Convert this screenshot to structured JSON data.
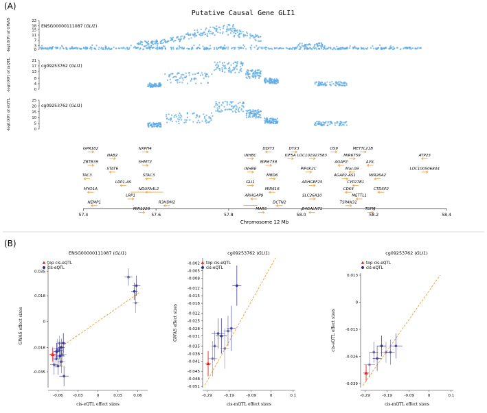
{
  "colors": {
    "point": "#5aa9e6",
    "gene_arrow": "#f0a44a",
    "top_eqtl": "#e8231e",
    "cis_eqtl": "#2b2a8c",
    "fit_line": "#f4a23a",
    "axis": "#333333"
  },
  "panel_a": {
    "label": "(A)",
    "title": "Putative Causal Gene GLI1",
    "xlabel": "Chromosome 12 Mb",
    "x_ticks": [
      "57.4",
      "57.6",
      "57.8",
      "58.0",
      "58.2",
      "58.4"
    ],
    "tracks": [
      {
        "prefix": "ENSG00000111087 (",
        "gene": "GLI1",
        "suffix": ")",
        "ylabel": "-log10(P) of GWAS",
        "ticks": [
          "0",
          "3",
          "7",
          "11",
          "15",
          "18",
          "22"
        ],
        "y_max": 22
      },
      {
        "prefix": "cg09253762 (",
        "gene": "GLI1",
        "suffix": ")",
        "ylabel": "-log10(P) of mQTL",
        "ticks": [
          "0",
          "4",
          "8",
          "13",
          "17",
          "21"
        ],
        "y_max": 21
      },
      {
        "prefix": "cg09253762 (",
        "gene": "GLI1",
        "suffix": ")",
        "ylabel": "-log10(P) of eQTL",
        "ticks": [
          "0",
          "5",
          "10",
          "15",
          "20",
          "25"
        ],
        "y_max": 25
      }
    ],
    "genes": [
      {
        "name": "GPR182",
        "pos": 57.42,
        "row": 0,
        "dir": 1
      },
      {
        "name": "NAB2",
        "pos": 57.48,
        "row": 1,
        "dir": 1
      },
      {
        "name": "NXPH4",
        "pos": 57.57,
        "row": 0,
        "dir": 1
      },
      {
        "name": "ZBTB39",
        "pos": 57.42,
        "row": 2,
        "dir": 1
      },
      {
        "name": "STAT6",
        "pos": 57.48,
        "row": 3,
        "dir": -1
      },
      {
        "name": "SHMT2",
        "pos": 57.57,
        "row": 2,
        "dir": 1
      },
      {
        "name": "TAC3",
        "pos": 57.41,
        "row": 4,
        "dir": -1
      },
      {
        "name": "LRP1-AS",
        "pos": 57.51,
        "row": 5,
        "dir": -1
      },
      {
        "name": "STAC3",
        "pos": 57.58,
        "row": 4,
        "dir": -1
      },
      {
        "name": "MYO1A",
        "pos": 57.42,
        "row": 6,
        "dir": -1
      },
      {
        "name": "NDUFA4L2",
        "pos": 57.58,
        "row": 6,
        "dir": -1
      },
      {
        "name": "LRP1",
        "pos": 57.53,
        "row": 7,
        "dir": 1
      },
      {
        "name": "NEMP1",
        "pos": 57.43,
        "row": 8,
        "dir": -1
      },
      {
        "name": "R3HDM2",
        "pos": 57.63,
        "row": 8,
        "dir": -1
      },
      {
        "name": "MIR1228",
        "pos": 57.56,
        "row": 9,
        "dir": 1
      },
      {
        "name": "DDIT3",
        "pos": 57.91,
        "row": 0,
        "dir": -1
      },
      {
        "name": "DTX3",
        "pos": 57.98,
        "row": 0,
        "dir": 1
      },
      {
        "name": "OS9",
        "pos": 58.09,
        "row": 0,
        "dir": 1
      },
      {
        "name": "METTL21B",
        "pos": 58.17,
        "row": 0,
        "dir": 1
      },
      {
        "name": "ATP23",
        "pos": 58.34,
        "row": 1,
        "dir": -1
      },
      {
        "name": "INHBC",
        "pos": 57.86,
        "row": 1,
        "dir": 1
      },
      {
        "name": "KIF5A",
        "pos": 57.97,
        "row": 1,
        "dir": 1
      },
      {
        "name": "LOC101927583",
        "pos": 58.03,
        "row": 1,
        "dir": 1
      },
      {
        "name": "MIR6759",
        "pos": 58.14,
        "row": 1,
        "dir": 1
      },
      {
        "name": "MIR6758",
        "pos": 57.91,
        "row": 2,
        "dir": 1
      },
      {
        "name": "AGAP2",
        "pos": 58.11,
        "row": 2,
        "dir": -1
      },
      {
        "name": "AVIL",
        "pos": 58.19,
        "row": 2,
        "dir": -1
      },
      {
        "name": "INHBE",
        "pos": 57.86,
        "row": 3,
        "dir": 1
      },
      {
        "name": "PIP4K2C",
        "pos": 58.02,
        "row": 3,
        "dir": 1
      },
      {
        "name": "Mar-09",
        "pos": 58.14,
        "row": 3,
        "dir": -1
      },
      {
        "name": "LOC100506844",
        "pos": 58.34,
        "row": 3,
        "dir": 1
      },
      {
        "name": "MBD6",
        "pos": 57.92,
        "row": 4,
        "dir": 1
      },
      {
        "name": "AGAP2-AS1",
        "pos": 58.12,
        "row": 4,
        "dir": 1
      },
      {
        "name": "MIR26A2",
        "pos": 58.21,
        "row": 4,
        "dir": -1
      },
      {
        "name": "GLI1",
        "pos": 57.86,
        "row": 5,
        "dir": 1
      },
      {
        "name": "ARHGEF25",
        "pos": 58.03,
        "row": 5,
        "dir": 1
      },
      {
        "name": "CYP27B1",
        "pos": 58.15,
        "row": 5,
        "dir": -1
      },
      {
        "name": "MIR616",
        "pos": 57.92,
        "row": 6,
        "dir": -1
      },
      {
        "name": "CDK4",
        "pos": 58.13,
        "row": 6,
        "dir": -1
      },
      {
        "name": "CTDSP2",
        "pos": 58.22,
        "row": 6,
        "dir": -1
      },
      {
        "name": "ARHGAP9",
        "pos": 57.87,
        "row": 7,
        "dir": -1
      },
      {
        "name": "SLC26A10",
        "pos": 58.03,
        "row": 7,
        "dir": 1
      },
      {
        "name": "METTL1",
        "pos": 58.16,
        "row": 7,
        "dir": -1
      },
      {
        "name": "DCTN2",
        "pos": 57.94,
        "row": 8,
        "dir": -1
      },
      {
        "name": "TSPAN31",
        "pos": 58.13,
        "row": 8,
        "dir": 1
      },
      {
        "name": "MARS",
        "pos": 57.89,
        "row": 9,
        "dir": 1
      },
      {
        "name": "B4GALNT1",
        "pos": 58.03,
        "row": 9,
        "dir": -1
      },
      {
        "name": "TSFM",
        "pos": 58.19,
        "row": 9,
        "dir": 1
      }
    ]
  },
  "panel_b": {
    "label": "(B)",
    "legend_top": "top cis-eQTL",
    "legend_cis": "cis-eQTL"
  },
  "chart_data": [
    {
      "type": "scatter",
      "title_prefix": "ENSG00000111087 (",
      "title_gene": "GLI1",
      "title_suffix": ")",
      "xlabel": "cis-eQTL effect sizes",
      "ylabel": "GWAS effect sizes",
      "xlim": [
        -0.075,
        0.075
      ],
      "ylim": [
        -0.046,
        0.04
      ],
      "x_ticks": [
        -0.06,
        -0.03,
        0,
        0.03,
        0.06
      ],
      "x_tick_labels": [
        "-0.06",
        "-0.03",
        "0",
        "0.03",
        "0.06"
      ],
      "y_ticks": [
        -0.035,
        -0.018,
        0,
        0.018,
        0.035
      ],
      "y_tick_labels": [
        "-0.035",
        "-0.018",
        "0",
        "0.018",
        "0.035"
      ],
      "legend": true,
      "fit": [
        [
          -0.072,
          -0.023
        ],
        [
          0.062,
          0.02
        ]
      ],
      "top": [
        {
          "x": -0.068,
          "y": -0.023,
          "xe": 0.005,
          "ye": 0.005
        }
      ],
      "points": [
        {
          "x": -0.061,
          "y": -0.019,
          "xe": 0.006,
          "ye": 0.007
        },
        {
          "x": -0.058,
          "y": -0.02,
          "xe": 0.006,
          "ye": 0.006
        },
        {
          "x": -0.055,
          "y": -0.018,
          "xe": 0.005,
          "ye": 0.006
        },
        {
          "x": -0.057,
          "y": -0.024,
          "xe": 0.007,
          "ye": 0.007
        },
        {
          "x": -0.063,
          "y": -0.026,
          "xe": 0.006,
          "ye": 0.006
        },
        {
          "x": -0.055,
          "y": -0.028,
          "xe": 0.005,
          "ye": 0.008
        },
        {
          "x": -0.06,
          "y": -0.031,
          "xe": 0.007,
          "ye": 0.006
        },
        {
          "x": -0.052,
          "y": -0.015,
          "xe": 0.004,
          "ye": 0.007
        },
        {
          "x": -0.058,
          "y": -0.015,
          "xe": 0.005,
          "ye": 0.005
        },
        {
          "x": -0.066,
          "y": -0.03,
          "xe": 0.006,
          "ye": 0.007
        },
        {
          "x": -0.051,
          "y": -0.038,
          "xe": 0.007,
          "ye": 0.007
        },
        {
          "x": -0.062,
          "y": -0.021,
          "xe": 0.005,
          "ye": 0.006
        },
        {
          "x": -0.053,
          "y": -0.023,
          "xe": 0.006,
          "ye": 0.005
        },
        {
          "x": 0.046,
          "y": 0.031,
          "xe": 0.006,
          "ye": 0.006
        },
        {
          "x": 0.058,
          "y": 0.025,
          "xe": 0.006,
          "ye": 0.007
        },
        {
          "x": 0.055,
          "y": 0.021,
          "xe": 0.005,
          "ye": 0.006
        },
        {
          "x": 0.057,
          "y": 0.013,
          "xe": 0.005,
          "ye": 0.007
        }
      ]
    },
    {
      "type": "scatter",
      "title_prefix": "cg09253762 (",
      "title_gene": "GLI1",
      "title_suffix": ")",
      "xlabel": "cis-mQTL effect sizes",
      "ylabel": "GWAS effect sizes",
      "xlim": [
        -0.31,
        0.11
      ],
      "ylim": [
        -0.0515,
        0.0
      ],
      "x_ticks": [
        -0.29,
        -0.19,
        -0.09,
        0,
        0.1
      ],
      "x_tick_labels": [
        "-0.29",
        "-0.19",
        "-0.09",
        "0",
        "0.1"
      ],
      "y_ticks": [
        -0.002,
        -0.005,
        -0.008,
        -0.012,
        -0.015,
        -0.018,
        -0.022,
        -0.025,
        -0.028,
        -0.031,
        -0.035,
        -0.038,
        -0.041,
        -0.045,
        -0.048,
        -0.051
      ],
      "y_tick_labels": [
        "-0.002",
        "-0.005",
        "-0.008",
        "-0.012",
        "-0.015",
        "-0.018",
        "-0.022",
        "-0.025",
        "-0.028",
        "-0.031",
        "-0.035",
        "-0.038",
        "-0.041",
        "-0.045",
        "-0.048",
        "-0.051"
      ],
      "legend": true,
      "fit": [
        [
          -0.3,
          -0.0505
        ],
        [
          0.02,
          0.0
        ]
      ],
      "top": [
        {
          "x": -0.285,
          "y": -0.042,
          "xe": 0.012,
          "ye": 0.005
        }
      ],
      "points": [
        {
          "x": -0.265,
          "y": -0.04,
          "xe": 0.02,
          "ye": 0.007
        },
        {
          "x": -0.255,
          "y": -0.035,
          "xe": 0.015,
          "ye": 0.006
        },
        {
          "x": -0.24,
          "y": -0.03,
          "xe": 0.03,
          "ye": 0.006
        },
        {
          "x": -0.225,
          "y": -0.031,
          "xe": 0.025,
          "ye": 0.007
        },
        {
          "x": -0.21,
          "y": -0.036,
          "xe": 0.02,
          "ye": 0.008
        },
        {
          "x": -0.195,
          "y": -0.029,
          "xe": 0.02,
          "ye": 0.006
        },
        {
          "x": -0.18,
          "y": -0.028,
          "xe": 0.02,
          "ye": 0.009
        },
        {
          "x": -0.155,
          "y": -0.011,
          "xe": 0.02,
          "ye": 0.008
        }
      ]
    },
    {
      "type": "scatter",
      "title_prefix": "cg09253762 (",
      "title_gene": "GLI1",
      "title_suffix": ")",
      "xlabel": "cis-mQTL effect sizes",
      "ylabel": "cis-eQTL effect sizes",
      "xlim": [
        -0.31,
        0.11
      ],
      "ylim": [
        -0.041,
        0.014
      ],
      "x_ticks": [
        -0.29,
        -0.19,
        -0.09,
        0,
        0.1
      ],
      "x_tick_labels": [
        "-0.29",
        "-0.19",
        "-0.09",
        "0",
        "0.1"
      ],
      "y_ticks": [
        -0.039,
        -0.026,
        -0.013,
        0,
        0.013
      ],
      "y_tick_labels": [
        "-0.039",
        "-0.026",
        "-0.013",
        "0",
        "0.013"
      ],
      "legend": true,
      "fit": [
        [
          -0.3,
          -0.04
        ],
        [
          0.05,
          0.013
        ]
      ],
      "top": [
        {
          "x": -0.285,
          "y": -0.034,
          "xe": 0.012,
          "ye": 0.004
        }
      ],
      "points": [
        {
          "x": -0.27,
          "y": -0.03,
          "xe": 0.025,
          "ye": 0.006
        },
        {
          "x": -0.25,
          "y": -0.024,
          "xe": 0.02,
          "ye": 0.005
        },
        {
          "x": -0.235,
          "y": -0.027,
          "xe": 0.02,
          "ye": 0.006
        },
        {
          "x": -0.215,
          "y": -0.021,
          "xe": 0.02,
          "ye": 0.005
        },
        {
          "x": -0.195,
          "y": -0.024,
          "xe": 0.025,
          "ye": 0.005
        },
        {
          "x": -0.175,
          "y": -0.024,
          "xe": 0.02,
          "ye": 0.006
        },
        {
          "x": -0.15,
          "y": -0.021,
          "xe": 0.03,
          "ye": 0.006
        }
      ]
    }
  ]
}
